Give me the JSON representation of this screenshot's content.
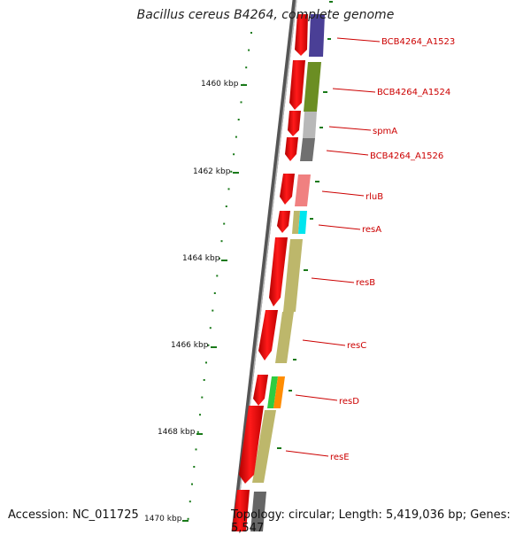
{
  "title": "Bacillus cereus B4264, complete genome",
  "footer": {
    "accession": "Accession: NC_011725",
    "topology": "Topology: circular; Length: 5,419,036 bp; Genes: 5,547"
  },
  "colors": {
    "backbone": "#7a7a7a",
    "gene_red": "#ff0000",
    "gene_label": "#cc0000",
    "tick": "#1a7a1a"
  },
  "ticks": [
    {
      "label": "1460 kbp",
      "kbp": 1460
    },
    {
      "label": "1462 kbp",
      "kbp": 1462
    },
    {
      "label": "1464 kbp",
      "kbp": 1464
    },
    {
      "label": "1466 kbp",
      "kbp": 1466
    },
    {
      "label": "1468 kbp",
      "kbp": 1468
    },
    {
      "label": "1470 kbp",
      "kbp": 1470
    }
  ],
  "genes": [
    {
      "label": "BCB4264_A1523",
      "cog_color": "#4a3f96"
    },
    {
      "label": "BCB4264_A1524",
      "cog_color": "#6b8e23"
    },
    {
      "label": "spmA",
      "cog_color": "#b8b8b8"
    },
    {
      "label": "BCB4264_A1526",
      "cog_color": "#707070"
    },
    {
      "label": "rluB",
      "cog_color": "#f08080"
    },
    {
      "label": "resA",
      "cog_color": "#00e5ee"
    },
    {
      "label": "resB",
      "cog_color": "#bdb76b"
    },
    {
      "label": "resC",
      "cog_color": "#bdb76b"
    },
    {
      "label": "resD",
      "cog_color": "#ff8c00"
    },
    {
      "label": "resE",
      "cog_color": "#bdb76b"
    }
  ]
}
